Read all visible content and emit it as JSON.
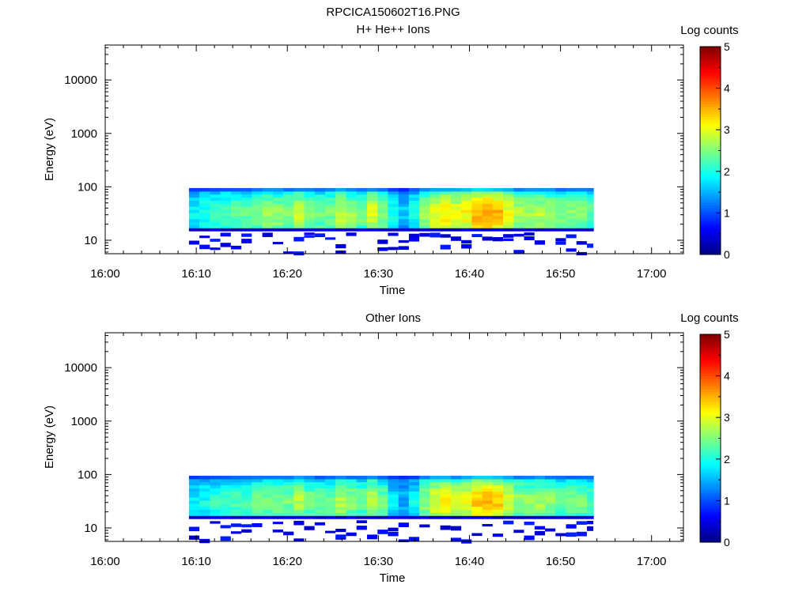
{
  "figure_title": "RPCICA150602T16.PNG",
  "chart_data": [
    {
      "type": "heatmap",
      "title": "H+ He++ Ions",
      "xlabel": "Time",
      "ylabel": "Energy (eV)",
      "x_ticks": [
        "16:00",
        "16:10",
        "16:20",
        "16:30",
        "16:40",
        "16:50",
        "17:00"
      ],
      "x_range_min": [
        0,
        63.5
      ],
      "x_minor_step_min": 2,
      "y_scale": "log",
      "y_ticks": [
        "10",
        "100",
        "1000",
        "10000"
      ],
      "y_range": [
        5.6,
        45000
      ],
      "data_time_range_min": [
        9.2,
        53.6
      ],
      "data_energy_range_eV": [
        15,
        95
      ],
      "colorbar": {
        "label": "Log counts",
        "ticks": [
          "0",
          "1",
          "2",
          "3",
          "4",
          "5"
        ],
        "range": [
          0,
          5
        ]
      },
      "profile_log_counts": [
        {
          "t": 9.2,
          "v": 1.8
        },
        {
          "t": 12,
          "v": 2.2
        },
        {
          "t": 14,
          "v": 2.3
        },
        {
          "t": 16,
          "v": 2.4
        },
        {
          "t": 18,
          "v": 2.7
        },
        {
          "t": 20,
          "v": 2.5
        },
        {
          "t": 21,
          "v": 2.9
        },
        {
          "t": 23,
          "v": 2.4
        },
        {
          "t": 25,
          "v": 2.5
        },
        {
          "t": 26,
          "v": 2.9
        },
        {
          "t": 28,
          "v": 2.4
        },
        {
          "t": 29.5,
          "v": 3.0
        },
        {
          "t": 31,
          "v": 2.2
        },
        {
          "t": 32.5,
          "v": 1.5
        },
        {
          "t": 34.5,
          "v": 2.2
        },
        {
          "t": 35.5,
          "v": 3.0
        },
        {
          "t": 37.5,
          "v": 3.2
        },
        {
          "t": 39,
          "v": 2.9
        },
        {
          "t": 40.5,
          "v": 3.4
        },
        {
          "t": 42.5,
          "v": 3.7
        },
        {
          "t": 44,
          "v": 3.1
        },
        {
          "t": 46,
          "v": 2.6
        },
        {
          "t": 48,
          "v": 2.8
        },
        {
          "t": 50,
          "v": 2.5
        },
        {
          "t": 52,
          "v": 2.6
        },
        {
          "t": 53.6,
          "v": 2.3
        }
      ]
    },
    {
      "type": "heatmap",
      "title": "Other Ions",
      "xlabel": "Time",
      "ylabel": "Energy (eV)",
      "x_ticks": [
        "16:00",
        "16:10",
        "16:20",
        "16:30",
        "16:40",
        "16:50",
        "17:00"
      ],
      "x_range_min": [
        0,
        63.5
      ],
      "x_minor_step_min": 2,
      "y_scale": "log",
      "y_ticks": [
        "10",
        "100",
        "1000",
        "10000"
      ],
      "y_range": [
        5.6,
        45000
      ],
      "data_time_range_min": [
        9.2,
        53.6
      ],
      "data_energy_range_eV": [
        15,
        95
      ],
      "colorbar": {
        "label": "Log counts",
        "ticks": [
          "0",
          "1",
          "2",
          "3",
          "4",
          "5"
        ],
        "range": [
          0,
          5
        ]
      },
      "profile_log_counts": [
        {
          "t": 9.2,
          "v": 1.7
        },
        {
          "t": 12,
          "v": 2.1
        },
        {
          "t": 14,
          "v": 2.2
        },
        {
          "t": 16,
          "v": 2.3
        },
        {
          "t": 18,
          "v": 2.5
        },
        {
          "t": 20,
          "v": 2.4
        },
        {
          "t": 21,
          "v": 2.8
        },
        {
          "t": 23,
          "v": 2.3
        },
        {
          "t": 25,
          "v": 2.4
        },
        {
          "t": 26,
          "v": 2.8
        },
        {
          "t": 28,
          "v": 2.3
        },
        {
          "t": 29.5,
          "v": 2.9
        },
        {
          "t": 31,
          "v": 2.1
        },
        {
          "t": 32.5,
          "v": 1.4
        },
        {
          "t": 34.5,
          "v": 2.1
        },
        {
          "t": 35.5,
          "v": 2.9
        },
        {
          "t": 37.5,
          "v": 3.1
        },
        {
          "t": 39,
          "v": 2.8
        },
        {
          "t": 40.5,
          "v": 3.3
        },
        {
          "t": 42.5,
          "v": 3.6
        },
        {
          "t": 44,
          "v": 3.0
        },
        {
          "t": 46,
          "v": 2.5
        },
        {
          "t": 48,
          "v": 2.7
        },
        {
          "t": 50,
          "v": 2.4
        },
        {
          "t": 52,
          "v": 2.5
        },
        {
          "t": 53.6,
          "v": 2.2
        }
      ]
    }
  ]
}
